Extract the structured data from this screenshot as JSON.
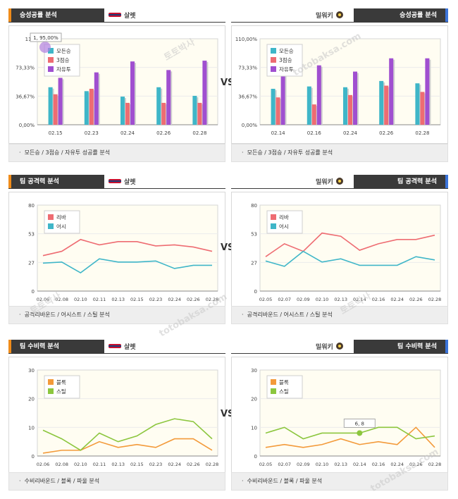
{
  "vs_label": "VS",
  "watermark": [
    "토토박사",
    "totobaksa.com"
  ],
  "rows": [
    {
      "left": {
        "title": "승성공률 분석",
        "team": "살렛",
        "team_icon": "team-logo-icon",
        "footer": "모든승 / 3점승 / 자유투 성공률 분석",
        "chart_data": {
          "type": "bar",
          "categories": [
            "02.15",
            "02.23",
            "02.24",
            "02.26",
            "02.28"
          ],
          "yticks": [
            "0,00%",
            "36,67%",
            "73,33%",
            "110"
          ],
          "ylim": [
            0,
            110
          ],
          "series": [
            {
              "name": "모든승",
              "color": "#3fb6c8",
              "values": [
                48,
                43,
                36,
                48,
                37
              ]
            },
            {
              "name": "3점승",
              "color": "#ee6c72",
              "values": [
                39,
                46,
                28,
                28,
                28
              ]
            },
            {
              "name": "자유투",
              "color": "#a04fd0",
              "values": [
                60,
                67,
                81,
                70,
                82
              ]
            }
          ],
          "tooltip": "1, 95,00%"
        }
      },
      "right": {
        "title": "승성공률 분석",
        "team": "밀워키",
        "team_icon": "team-logo-icon",
        "footer": "모든승 / 3점승 / 자유투 성공률 분석",
        "chart_data": {
          "type": "bar",
          "categories": [
            "02.14",
            "02.16",
            "02.24",
            "02.26",
            "02.28"
          ],
          "yticks": [
            "0,00%",
            "36,67%",
            "73,33%",
            "110,00%"
          ],
          "ylim": [
            0,
            110
          ],
          "series": [
            {
              "name": "모든승",
              "color": "#3fb6c8",
              "values": [
                46,
                49,
                48,
                56,
                53
              ]
            },
            {
              "name": "3점승",
              "color": "#ee6c72",
              "values": [
                35,
                26,
                38,
                50,
                42
              ]
            },
            {
              "name": "자유투",
              "color": "#a04fd0",
              "values": [
                70,
                76,
                68,
                85,
                85
              ]
            }
          ]
        }
      }
    },
    {
      "left": {
        "title": "팀 공격력 분석",
        "team": "살렛",
        "team_icon": "team-logo-icon",
        "footer": "공격리바운드 / 어시스트 / 스틸 분석",
        "chart_data": {
          "type": "line",
          "x": [
            "02.06",
            "02.08",
            "02.10",
            "02.11",
            "02.13",
            "02.15",
            "02.23",
            "02.24",
            "02.26",
            "02.28"
          ],
          "yticks": [
            "0",
            "27",
            "53",
            "80"
          ],
          "ylim": [
            0,
            80
          ],
          "series": [
            {
              "name": "리바",
              "color": "#ee6c72",
              "values": [
                33,
                37,
                48,
                43,
                46,
                46,
                42,
                43,
                41,
                37
              ]
            },
            {
              "name": "어시",
              "color": "#3fb6c8",
              "values": [
                26,
                27,
                17,
                30,
                27,
                27,
                28,
                21,
                24,
                24
              ]
            }
          ]
        }
      },
      "right": {
        "title": "팀 공격력 분석",
        "team": "밀워키",
        "team_icon": "team-logo-icon",
        "footer": "공격리바운드 / 어시스트 / 스틸 분석",
        "chart_data": {
          "type": "line",
          "x": [
            "02.05",
            "02.07",
            "02.09",
            "02.10",
            "02.13",
            "02.14",
            "02.16",
            "02.24",
            "02.26",
            "02.28"
          ],
          "yticks": [
            "0",
            "27",
            "53",
            "80"
          ],
          "ylim": [
            0,
            80
          ],
          "series": [
            {
              "name": "리바",
              "color": "#ee6c72",
              "values": [
                32,
                44,
                37,
                54,
                51,
                38,
                44,
                48,
                48,
                52
              ]
            },
            {
              "name": "어시",
              "color": "#3fb6c8",
              "values": [
                28,
                23,
                37,
                27,
                30,
                24,
                24,
                24,
                32,
                29
              ]
            }
          ]
        }
      }
    },
    {
      "left": {
        "title": "팀 수비력 분석",
        "team": "살렛",
        "team_icon": "team-logo-icon",
        "footer": "수비리바운드 / 블록 / 파울 분석",
        "chart_data": {
          "type": "line",
          "x": [
            "02.06",
            "02.08",
            "02.10",
            "02.11",
            "02.13",
            "02.15",
            "02.23",
            "02.24",
            "02.26",
            "02.28"
          ],
          "yticks": [
            "0",
            "10",
            "20",
            "30"
          ],
          "ylim": [
            0,
            30
          ],
          "series": [
            {
              "name": "블록",
              "color": "#f39a3a",
              "values": [
                1,
                2,
                2,
                5,
                3,
                4,
                3,
                6,
                6,
                2
              ]
            },
            {
              "name": "스틸",
              "color": "#8cc63e",
              "values": [
                9,
                6,
                2,
                8,
                5,
                7,
                11,
                13,
                12,
                6
              ]
            }
          ]
        }
      },
      "right": {
        "title": "팀 수비력 분석",
        "team": "밀워키",
        "team_icon": "team-logo-icon",
        "footer": "수비리바운드 / 블록 / 파울 분석",
        "chart_data": {
          "type": "line",
          "x": [
            "02.05",
            "02.07",
            "02.09",
            "02.10",
            "02.13",
            "02.14",
            "02.16",
            "02.24",
            "02.26",
            "02.28"
          ],
          "yticks": [
            "0",
            "10",
            "20",
            "30"
          ],
          "ylim": [
            0,
            30
          ],
          "series": [
            {
              "name": "블록",
              "color": "#f39a3a",
              "values": [
                3,
                4,
                3,
                4,
                6,
                4,
                5,
                4,
                10,
                3
              ]
            },
            {
              "name": "스틸",
              "color": "#8cc63e",
              "values": [
                8,
                10,
                6,
                8,
                8,
                8,
                10,
                10,
                6,
                7
              ]
            }
          ],
          "tooltip": "6, 8"
        }
      }
    }
  ]
}
